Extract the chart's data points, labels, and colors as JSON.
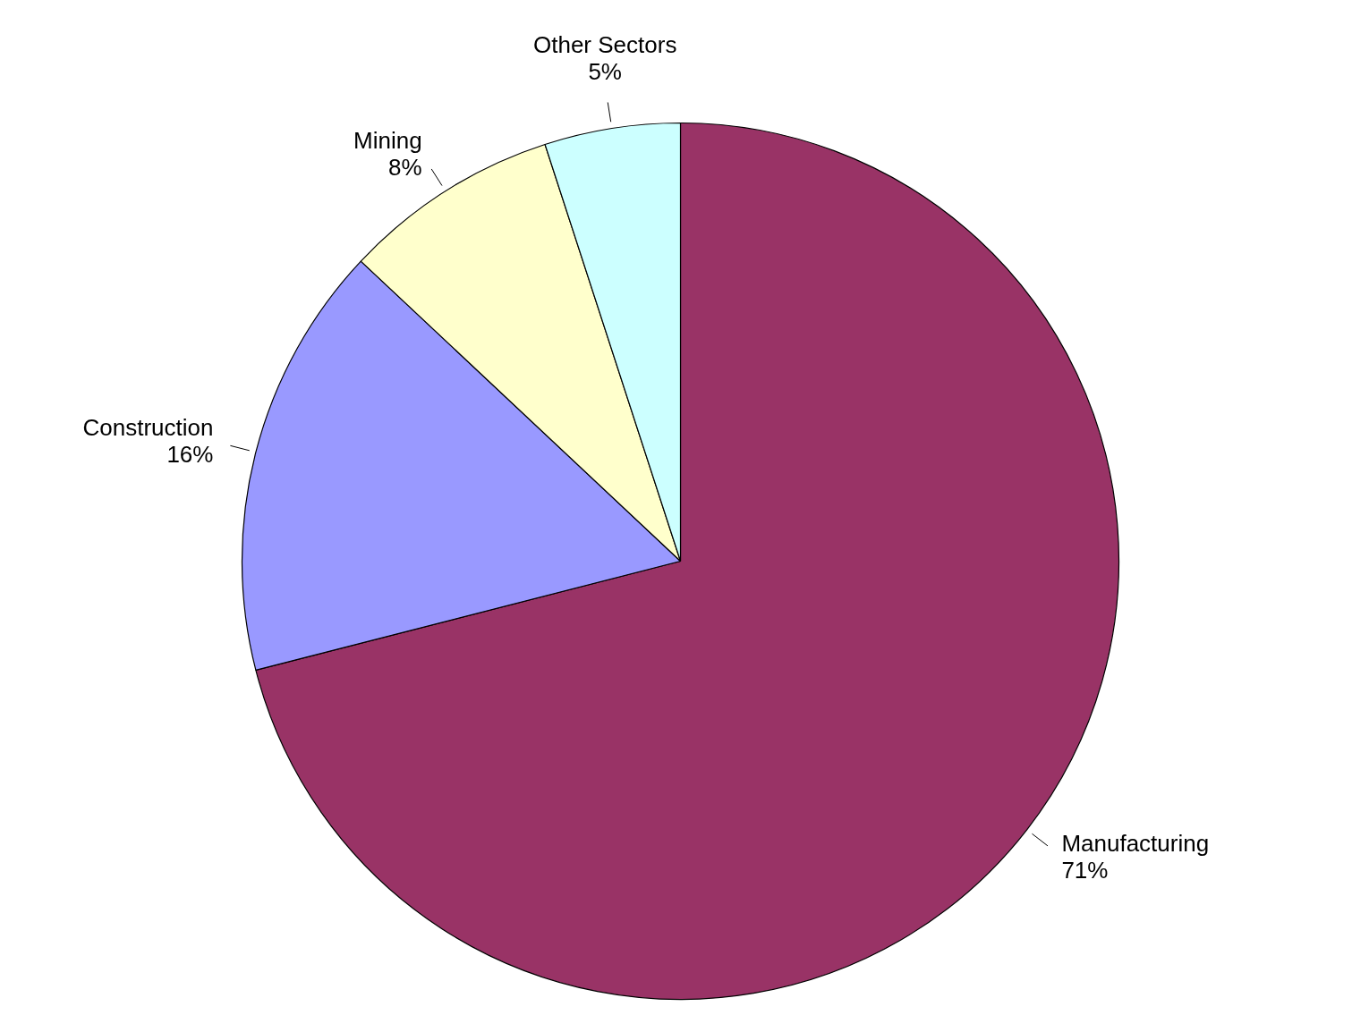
{
  "chart_data": {
    "type": "pie",
    "categories": [
      "Manufacturing",
      "Construction",
      "Mining",
      "Other Sectors"
    ],
    "values": [
      71,
      16,
      8,
      5
    ],
    "colors": [
      "#993366",
      "#9999ff",
      "#ffffcc",
      "#ccffff"
    ],
    "value_labels": [
      "71%",
      "16%",
      "8%",
      "5%"
    ],
    "legend": false
  }
}
